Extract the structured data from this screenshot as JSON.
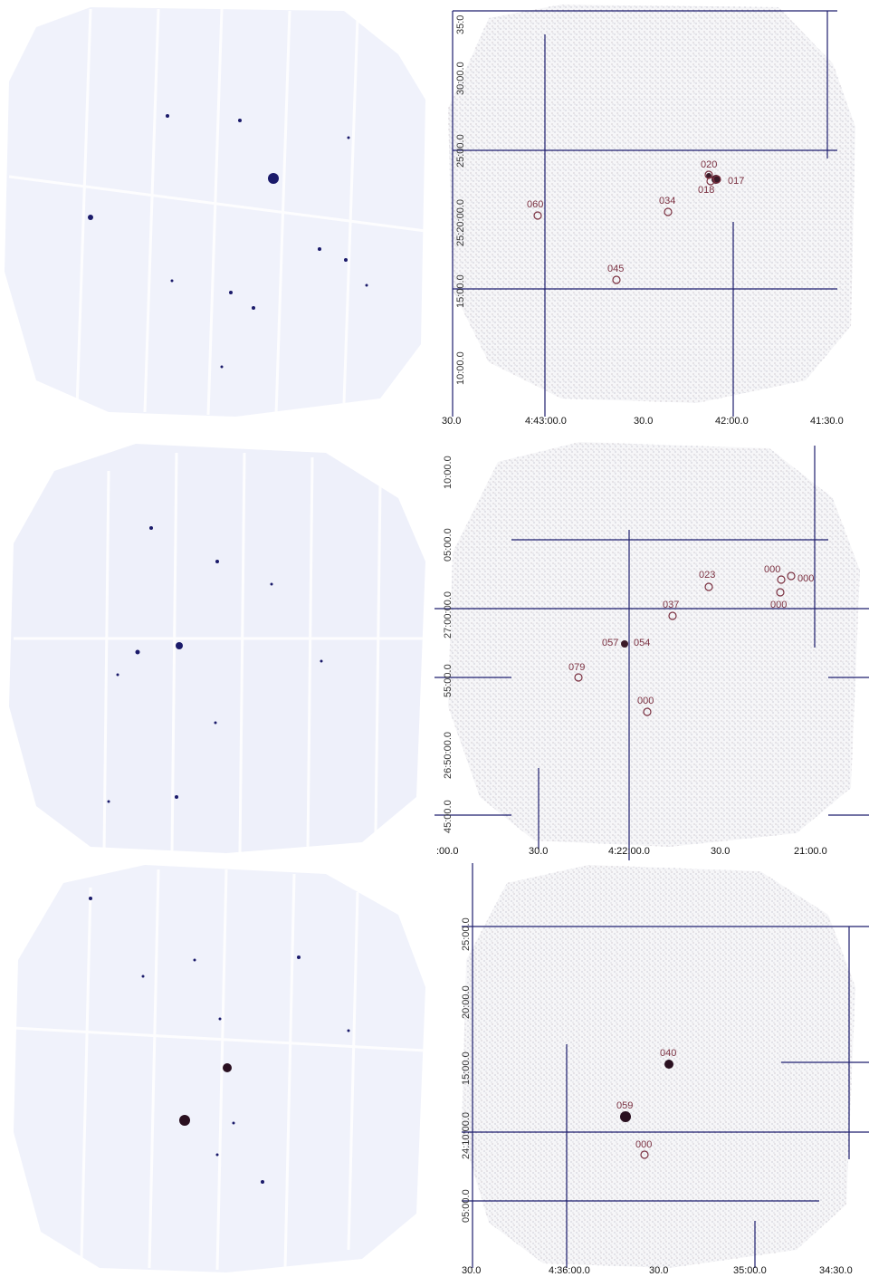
{
  "panels": [
    {
      "row": 0,
      "sources": [
        {
          "label": "020"
        },
        {
          "label": "017"
        },
        {
          "label": "018"
        },
        {
          "label": "034"
        },
        {
          "label": "060"
        },
        {
          "label": "045"
        }
      ],
      "ra_ticks": [
        "30.0",
        "4:43:00.0",
        "30.0",
        "42:00.0",
        "41:30.0"
      ],
      "dec_ticks": [
        "35:0",
        "30:00.0",
        "25:00.0",
        "25:20:00.0",
        "15:00.0",
        "10:00.0"
      ]
    },
    {
      "row": 1,
      "sources": [
        {
          "label": "023"
        },
        {
          "label": "000"
        },
        {
          "label": "000"
        },
        {
          "label": "000"
        },
        {
          "label": "037"
        },
        {
          "label": "057"
        },
        {
          "label": "054"
        },
        {
          "label": "079"
        },
        {
          "label": "000"
        }
      ],
      "ra_ticks": [
        ":00.0",
        "30.0",
        "4:22:00.0",
        "30.0",
        "21:00.0"
      ],
      "dec_ticks": [
        "10:00.0",
        "05:00.0",
        "27:00:00.0",
        "55:00.0",
        "26:50:00.0",
        "45:00.0"
      ]
    },
    {
      "row": 2,
      "sources": [
        {
          "label": "040"
        },
        {
          "label": "059"
        },
        {
          "label": "000"
        }
      ],
      "ra_ticks": [
        "30.0",
        "4:36:00.0",
        "30.0",
        "35:00.0",
        "34:30.0"
      ],
      "dec_ticks": [
        "25:00.0",
        "20:00.0",
        "15:00.0",
        "24:10:00.0",
        "05:00.0"
      ]
    }
  ]
}
